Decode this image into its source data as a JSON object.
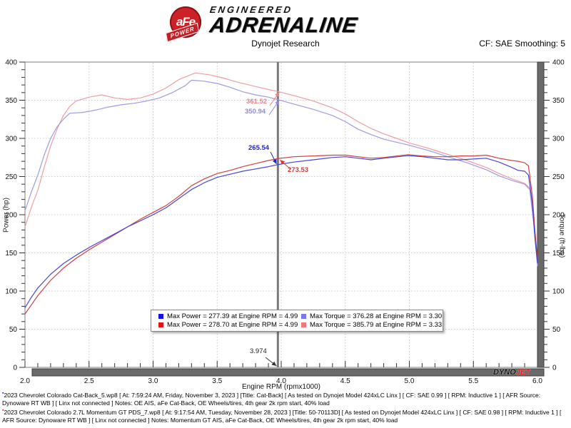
{
  "header": {
    "brand": {
      "circle_text": "aFe",
      "ribbon_text": "POWER",
      "line1": "ENGINEERED",
      "line2": "ADRENALINE"
    },
    "title": "Dynojet Research",
    "cf_text": "CF: SAE Smoothing: 5"
  },
  "chart_data": {
    "type": "line",
    "x_label": "Engine RPM (rpmx1000)",
    "y_left_label": "Power (hp)",
    "y_right_label": "Torque (ft-lbs)",
    "x_range": [
      2.0,
      6.0
    ],
    "y_range": [
      0,
      400
    ],
    "x_ticks": [
      "2.0",
      "2.5",
      "3.0",
      "3.5",
      "4.0",
      "4.5",
      "5.0",
      "5.5",
      "6.0"
    ],
    "y_ticks": [
      "0",
      "50",
      "100",
      "150",
      "200",
      "250",
      "300",
      "350",
      "400"
    ],
    "grid": "dotted",
    "legend_position": "bottom-center-box",
    "cursor_rpm": 3.974,
    "cursor_readouts": {
      "power_catback": 265.54,
      "power_momentum": 273.53,
      "torque_catback": 350.94,
      "torque_momentum": 361.52
    },
    "series": [
      {
        "name": "torque-momentum-gt",
        "unit": "ft-lbs",
        "color": "#f09ca4",
        "points": [
          [
            2.0,
            184
          ],
          [
            2.05,
            210
          ],
          [
            2.1,
            232
          ],
          [
            2.15,
            262
          ],
          [
            2.2,
            290
          ],
          [
            2.25,
            312
          ],
          [
            2.3,
            330
          ],
          [
            2.35,
            342
          ],
          [
            2.4,
            349
          ],
          [
            2.5,
            354
          ],
          [
            2.6,
            357
          ],
          [
            2.7,
            353
          ],
          [
            2.8,
            351
          ],
          [
            2.9,
            353
          ],
          [
            3.0,
            358
          ],
          [
            3.1,
            366
          ],
          [
            3.2,
            377
          ],
          [
            3.33,
            385.8
          ],
          [
            3.45,
            383
          ],
          [
            3.55,
            379
          ],
          [
            3.65,
            374
          ],
          [
            3.75,
            370
          ],
          [
            3.85,
            366
          ],
          [
            3.97,
            361.5
          ],
          [
            4.1,
            356
          ],
          [
            4.25,
            349
          ],
          [
            4.4,
            340
          ],
          [
            4.5,
            332
          ],
          [
            4.6,
            322
          ],
          [
            4.7,
            313
          ],
          [
            4.8,
            306
          ],
          [
            4.9,
            300
          ],
          [
            5.0,
            294
          ],
          [
            5.15,
            287
          ],
          [
            5.3,
            279
          ],
          [
            5.45,
            271
          ],
          [
            5.6,
            262
          ],
          [
            5.7,
            254
          ],
          [
            5.8,
            247
          ],
          [
            5.9,
            241
          ],
          [
            5.94,
            235
          ],
          [
            5.97,
            192
          ],
          [
            6.0,
            135
          ]
        ]
      },
      {
        "name": "torque-catback",
        "unit": "ft-lbs",
        "color": "#9c9ce6",
        "points": [
          [
            2.0,
            205
          ],
          [
            2.05,
            230
          ],
          [
            2.1,
            252
          ],
          [
            2.15,
            278
          ],
          [
            2.2,
            300
          ],
          [
            2.25,
            315
          ],
          [
            2.3,
            325
          ],
          [
            2.35,
            333
          ],
          [
            2.45,
            334
          ],
          [
            2.55,
            337
          ],
          [
            2.65,
            341
          ],
          [
            2.75,
            344
          ],
          [
            2.85,
            346
          ],
          [
            2.95,
            349
          ],
          [
            3.05,
            353
          ],
          [
            3.15,
            360
          ],
          [
            3.25,
            369
          ],
          [
            3.3,
            376.3
          ],
          [
            3.4,
            375
          ],
          [
            3.5,
            372
          ],
          [
            3.6,
            367
          ],
          [
            3.7,
            361
          ],
          [
            3.8,
            357
          ],
          [
            3.9,
            354
          ],
          [
            3.97,
            350.9
          ],
          [
            4.1,
            345
          ],
          [
            4.25,
            338
          ],
          [
            4.4,
            330
          ],
          [
            4.5,
            322
          ],
          [
            4.6,
            312
          ],
          [
            4.7,
            305
          ],
          [
            4.8,
            299
          ],
          [
            4.9,
            295
          ],
          [
            5.0,
            291
          ],
          [
            5.15,
            284
          ],
          [
            5.3,
            276
          ],
          [
            5.45,
            268
          ],
          [
            5.6,
            259
          ],
          [
            5.7,
            251
          ],
          [
            5.8,
            245
          ],
          [
            5.9,
            240
          ],
          [
            5.94,
            233
          ],
          [
            5.97,
            190
          ],
          [
            6.0,
            133
          ]
        ]
      },
      {
        "name": "power-momentum-gt",
        "unit": "hp",
        "color": "#d24040",
        "points": [
          [
            2.0,
            70
          ],
          [
            2.05,
            82
          ],
          [
            2.1,
            94
          ],
          [
            2.2,
            114
          ],
          [
            2.3,
            130
          ],
          [
            2.4,
            143
          ],
          [
            2.5,
            154
          ],
          [
            2.6,
            164
          ],
          [
            2.7,
            174
          ],
          [
            2.8,
            184
          ],
          [
            2.9,
            194
          ],
          [
            3.0,
            203
          ],
          [
            3.1,
            212
          ],
          [
            3.2,
            224
          ],
          [
            3.3,
            238
          ],
          [
            3.4,
            247
          ],
          [
            3.5,
            254
          ],
          [
            3.6,
            258
          ],
          [
            3.7,
            263
          ],
          [
            3.8,
            267
          ],
          [
            3.9,
            271
          ],
          [
            3.97,
            273.5
          ],
          [
            4.1,
            276
          ],
          [
            4.25,
            277
          ],
          [
            4.4,
            278
          ],
          [
            4.5,
            278
          ],
          [
            4.6,
            276
          ],
          [
            4.7,
            274
          ],
          [
            4.8,
            275
          ],
          [
            4.99,
            278.7
          ],
          [
            5.1,
            277
          ],
          [
            5.2,
            276
          ],
          [
            5.3,
            276
          ],
          [
            5.4,
            277
          ],
          [
            5.5,
            277
          ],
          [
            5.6,
            278
          ],
          [
            5.7,
            274
          ],
          [
            5.8,
            271
          ],
          [
            5.85,
            270
          ],
          [
            5.9,
            268
          ],
          [
            5.93,
            264
          ],
          [
            5.96,
            225
          ],
          [
            5.98,
            180
          ],
          [
            6.0,
            142
          ]
        ]
      },
      {
        "name": "power-catback",
        "unit": "hp",
        "color": "#4646d2",
        "points": [
          [
            2.0,
            78
          ],
          [
            2.05,
            92
          ],
          [
            2.1,
            104
          ],
          [
            2.2,
            122
          ],
          [
            2.3,
            136
          ],
          [
            2.4,
            147
          ],
          [
            2.5,
            157
          ],
          [
            2.6,
            166
          ],
          [
            2.7,
            175
          ],
          [
            2.8,
            184
          ],
          [
            2.9,
            192
          ],
          [
            3.0,
            200
          ],
          [
            3.1,
            209
          ],
          [
            3.2,
            221
          ],
          [
            3.3,
            233
          ],
          [
            3.4,
            242
          ],
          [
            3.5,
            249
          ],
          [
            3.6,
            253
          ],
          [
            3.7,
            257
          ],
          [
            3.8,
            260
          ],
          [
            3.9,
            263
          ],
          [
            3.97,
            265.5
          ],
          [
            4.1,
            269
          ],
          [
            4.25,
            272
          ],
          [
            4.4,
            275
          ],
          [
            4.5,
            276
          ],
          [
            4.6,
            274
          ],
          [
            4.7,
            272
          ],
          [
            4.8,
            274
          ],
          [
            4.99,
            277.4
          ],
          [
            5.1,
            276
          ],
          [
            5.2,
            274
          ],
          [
            5.3,
            272
          ],
          [
            5.4,
            272
          ],
          [
            5.5,
            273
          ],
          [
            5.6,
            274
          ],
          [
            5.7,
            269
          ],
          [
            5.8,
            262
          ],
          [
            5.85,
            258
          ],
          [
            5.9,
            257
          ],
          [
            5.93,
            252
          ],
          [
            5.96,
            215
          ],
          [
            5.98,
            170
          ],
          [
            6.0,
            137
          ]
        ]
      }
    ]
  },
  "annotations": {
    "torque_momentum": {
      "text": "361.52",
      "color": "#e8808a"
    },
    "torque_catback": {
      "text": "350.94",
      "color": "#8c8ce0"
    },
    "power_catback": {
      "text": "265.54",
      "color": "#2626c8"
    },
    "power_momentum": {
      "text": "273.53",
      "color": "#d83838"
    },
    "cursor": {
      "text": "3.974",
      "color": "#222222"
    }
  },
  "legend": {
    "items": [
      {
        "color": "#1414e0",
        "text": "Max Power = 277.39 at Engine RPM = 4.99"
      },
      {
        "color": "#7878f0",
        "text": "Max Torque = 376.28 at Engine RPM = 3.30"
      },
      {
        "color": "#e01414",
        "text": "Max Power = 278.70 at Engine RPM = 4.99"
      },
      {
        "color": "#f07878",
        "text": "Max Torque = 385.79 at Engine RPM = 3.33"
      }
    ]
  },
  "watermark": {
    "dyno": "DYNO",
    "jet": "JET"
  },
  "footer": {
    "files": [
      {
        "text": "2023 Chevrolet Colorado Cat-Back_5.wp8 [ At: 7:59:24 AM, Friday, November 3, 2023 ] [Title: Cat-Back]  [ As tested on Dynojet Model 424xLC Linx ] [ CF: SAE 0.99 ] [ RPM: Inductive 1 ] [ AFR Source: Dynoware RT WB ] [ Linx not connected ] Notes: OE AIS, aFe Cat-Back, OE Wheels/tires, 4th gear 2k rpm start, 40% load"
      },
      {
        "text": "2023 Chevrolet Colorado 2.7L Momentum GT PDS_7.wp8 [ At: 9:17:54 AM, Tuesday, November 28, 2023 ] [Title: 50-70113D]  [ As tested on Dynojet Model 424xLC Linx ] [ CF: SAE 0.98 ] [ RPM: Inductive 1 ] [ AFR Source: Dynoware RT WB ] [ Linx not connected ] Notes: Momentum GT AIS, aFe Cat-Back, OE Wheels/tires, 4th gear 2k rpm start, 40% load"
      }
    ]
  }
}
